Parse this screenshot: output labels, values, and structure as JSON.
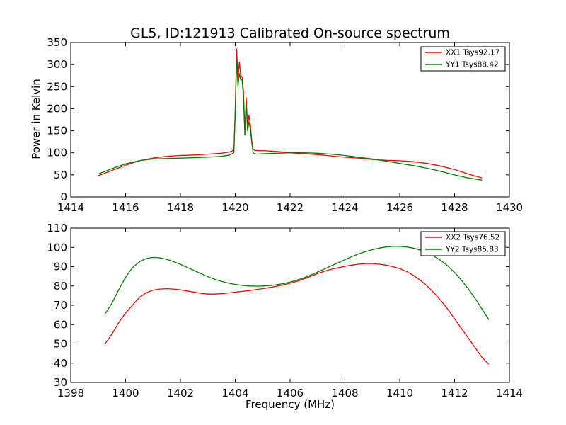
{
  "chart_data": [
    {
      "type": "line",
      "title": "GL5, ID:121913 Calibrated On-source spectrum",
      "xlabel": "",
      "ylabel": "Power in Kelvin",
      "xlim": [
        1414,
        1430
      ],
      "ylim": [
        0,
        350
      ],
      "xticks": [
        1414,
        1416,
        1418,
        1420,
        1422,
        1424,
        1426,
        1428,
        1430
      ],
      "yticks": [
        0,
        50,
        100,
        150,
        200,
        250,
        300,
        350
      ],
      "grid": false,
      "legend_position": "top-right",
      "series": [
        {
          "name": "XX1 Tsys92.17",
          "color": "#ff0000",
          "x": [
            1415.0,
            1415.5,
            1416.0,
            1416.5,
            1417.0,
            1417.5,
            1418.0,
            1418.5,
            1419.0,
            1419.5,
            1419.8,
            1419.95,
            1420.0,
            1420.05,
            1420.1,
            1420.15,
            1420.2,
            1420.25,
            1420.3,
            1420.35,
            1420.4,
            1420.45,
            1420.5,
            1420.55,
            1420.6,
            1420.65,
            1420.7,
            1420.8,
            1421.0,
            1421.5,
            1422.0,
            1422.5,
            1423.0,
            1423.5,
            1424.0,
            1424.5,
            1425.0,
            1425.5,
            1426.0,
            1426.5,
            1427.0,
            1427.5,
            1428.0,
            1428.5,
            1429.0
          ],
          "y": [
            48,
            60,
            72,
            82,
            88,
            92,
            94,
            95,
            97,
            99,
            102,
            106,
            200,
            335,
            270,
            305,
            275,
            272,
            240,
            150,
            225,
            160,
            185,
            165,
            130,
            108,
            106,
            105,
            105,
            103,
            100,
            98,
            96,
            93,
            90,
            88,
            85,
            83,
            82,
            80,
            76,
            70,
            62,
            52,
            43
          ]
        },
        {
          "name": "YY1 Tsys88.42",
          "color": "#008000",
          "x": [
            1415.0,
            1415.5,
            1416.0,
            1416.5,
            1417.0,
            1417.5,
            1418.0,
            1418.5,
            1419.0,
            1419.5,
            1419.8,
            1419.95,
            1420.0,
            1420.05,
            1420.1,
            1420.15,
            1420.2,
            1420.25,
            1420.3,
            1420.35,
            1420.4,
            1420.45,
            1420.5,
            1420.55,
            1420.6,
            1420.65,
            1420.7,
            1420.8,
            1421.0,
            1421.5,
            1422.0,
            1422.5,
            1423.0,
            1423.5,
            1424.0,
            1424.5,
            1425.0,
            1425.5,
            1426.0,
            1426.5,
            1427.0,
            1427.5,
            1428.0,
            1428.5,
            1429.0
          ],
          "y": [
            52,
            64,
            75,
            82,
            86,
            87,
            88,
            89,
            90,
            92,
            95,
            100,
            190,
            308,
            250,
            280,
            265,
            265,
            225,
            140,
            210,
            150,
            170,
            155,
            125,
            100,
            98,
            97,
            98,
            99,
            100,
            100,
            99,
            97,
            94,
            90,
            86,
            81,
            76,
            71,
            65,
            58,
            50,
            43,
            38
          ]
        }
      ]
    },
    {
      "type": "line",
      "title": "",
      "xlabel": "Frequency (MHz)",
      "ylabel": "",
      "xlim": [
        1398,
        1414
      ],
      "ylim": [
        30,
        110
      ],
      "xticks": [
        1398,
        1400,
        1402,
        1404,
        1406,
        1408,
        1410,
        1412,
        1414
      ],
      "yticks": [
        30,
        40,
        50,
        60,
        70,
        80,
        90,
        100,
        110
      ],
      "grid": false,
      "legend_position": "top-right",
      "series": [
        {
          "name": "XX2 Tsys76.52",
          "color": "#ff0000",
          "x": [
            1399.25,
            1399.5,
            1399.75,
            1400.0,
            1400.25,
            1400.5,
            1400.75,
            1401.0,
            1401.25,
            1401.5,
            1401.75,
            1402.0,
            1402.25,
            1402.5,
            1402.75,
            1403.0,
            1403.25,
            1403.5,
            1403.75,
            1404.0,
            1404.25,
            1404.5,
            1404.75,
            1405.0,
            1405.25,
            1405.5,
            1405.75,
            1406.0,
            1406.25,
            1406.5,
            1406.75,
            1407.0,
            1407.25,
            1407.5,
            1407.75,
            1408.0,
            1408.25,
            1408.5,
            1408.75,
            1409.0,
            1409.25,
            1409.5,
            1409.75,
            1410.0,
            1410.25,
            1410.5,
            1410.75,
            1411.0,
            1411.25,
            1411.5,
            1411.75,
            1412.0,
            1412.25,
            1412.5,
            1412.75,
            1413.0,
            1413.25
          ],
          "y": [
            50,
            55,
            61,
            66,
            70,
            74,
            76.5,
            77.8,
            78.4,
            78.6,
            78.4,
            78,
            77.4,
            76.8,
            76.2,
            75.8,
            75.8,
            76,
            76.4,
            76.8,
            77.2,
            77.6,
            78.1,
            78.6,
            79.2,
            79.8,
            80.6,
            81.4,
            82.4,
            83.6,
            85,
            86.4,
            87.6,
            88.6,
            89.4,
            90.2,
            90.8,
            91.3,
            91.6,
            91.6,
            91.3,
            90.8,
            90,
            89,
            87.5,
            85.5,
            83,
            80,
            76.5,
            72.5,
            68,
            63,
            58,
            53,
            48,
            43,
            39.5
          ]
        },
        {
          "name": "YY2 Tsys85.83",
          "color": "#008000",
          "x": [
            1399.25,
            1399.5,
            1399.75,
            1400.0,
            1400.25,
            1400.5,
            1400.75,
            1401.0,
            1401.25,
            1401.5,
            1401.75,
            1402.0,
            1402.25,
            1402.5,
            1402.75,
            1403.0,
            1403.25,
            1403.5,
            1403.75,
            1404.0,
            1404.25,
            1404.5,
            1404.75,
            1405.0,
            1405.25,
            1405.5,
            1405.75,
            1406.0,
            1406.25,
            1406.5,
            1406.75,
            1407.0,
            1407.25,
            1407.5,
            1407.75,
            1408.0,
            1408.25,
            1408.5,
            1408.75,
            1409.0,
            1409.25,
            1409.5,
            1409.75,
            1410.0,
            1410.25,
            1410.5,
            1410.75,
            1411.0,
            1411.25,
            1411.5,
            1411.75,
            1412.0,
            1412.25,
            1412.5,
            1412.75,
            1413.0,
            1413.25
          ],
          "y": [
            65.5,
            71,
            78,
            84.5,
            89.5,
            92.5,
            94.2,
            94.8,
            94.6,
            93.8,
            92.6,
            91.2,
            89.6,
            88,
            86.4,
            84.8,
            83.5,
            82.4,
            81.5,
            80.8,
            80.3,
            80,
            79.9,
            80,
            80.2,
            80.6,
            81.2,
            82,
            83,
            84.2,
            85.6,
            87.2,
            88.8,
            90.4,
            92,
            93.6,
            95.2,
            96.6,
            97.8,
            98.8,
            99.6,
            100.2,
            100.5,
            100.5,
            100.2,
            99.6,
            98.6,
            97.2,
            95.4,
            93.2,
            90.4,
            87,
            83,
            78.5,
            73.5,
            68,
            62.5
          ]
        }
      ]
    }
  ]
}
